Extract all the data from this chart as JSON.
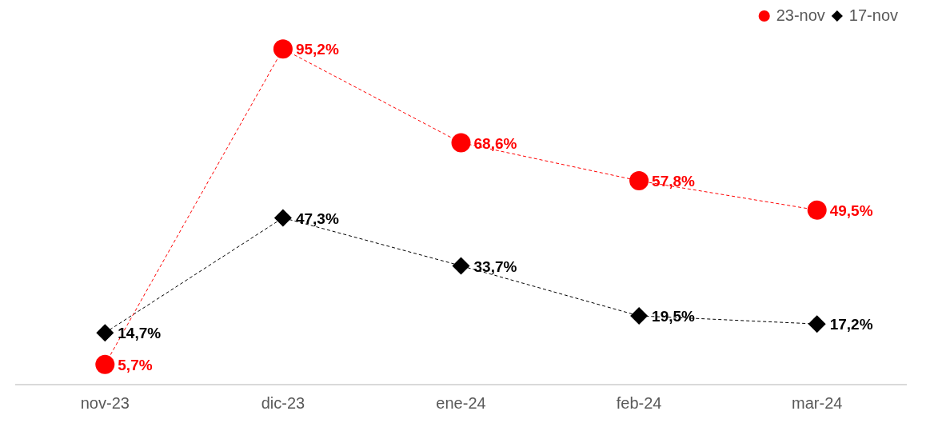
{
  "chart_data": {
    "type": "line",
    "categories": [
      "nov-23",
      "dic-23",
      "ene-24",
      "feb-24",
      "mar-24"
    ],
    "series": [
      {
        "name": "23-nov",
        "color": "#ff0000",
        "marker": "circle",
        "values": [
          5.7,
          95.2,
          68.6,
          57.8,
          49.5
        ],
        "value_labels": [
          "5,7%",
          "95,2%",
          "68,6%",
          "57,8%",
          "49,5%"
        ]
      },
      {
        "name": "17-nov",
        "color": "#000000",
        "marker": "diamond",
        "values": [
          14.7,
          47.3,
          33.7,
          19.5,
          17.2
        ],
        "value_labels": [
          "14,7%",
          "47,3%",
          "33,7%",
          "19,5%",
          "17,2%"
        ]
      }
    ],
    "line_style": "dashed",
    "legend": "top right",
    "grid": false
  }
}
